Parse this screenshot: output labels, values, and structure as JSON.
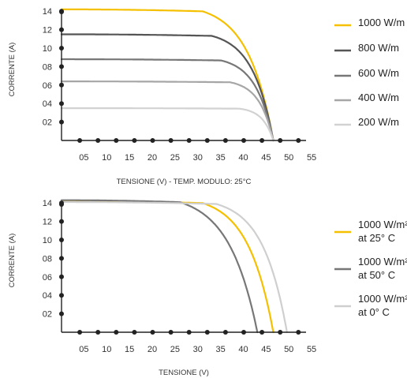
{
  "chart_data": [
    {
      "type": "line",
      "xlabel": "TENSIONE (V) - TEMP. MODULO: 25°C",
      "ylabel": "CORRENTE (A)",
      "x_ticks": [
        "05",
        "10",
        "15",
        "20",
        "25",
        "30",
        "35",
        "40",
        "45",
        "50",
        "55"
      ],
      "y_ticks": [
        "02",
        "04",
        "06",
        "08",
        "10",
        "12",
        "14"
      ],
      "xlim": [
        0,
        57
      ],
      "ylim": [
        0,
        14.5
      ],
      "legend_position": "right",
      "series": [
        {
          "name": "1000 W/m",
          "color": "#f5c000",
          "isc": 14.2,
          "voc": 46.5,
          "knee": 31,
          "k": 0.18
        },
        {
          "name": "800 W/m",
          "color": "#555555",
          "isc": 11.5,
          "voc": 46.5,
          "knee": 33,
          "k": 0.22
        },
        {
          "name": "600 W/m",
          "color": "#777777",
          "isc": 8.8,
          "voc": 46.5,
          "knee": 35,
          "k": 0.26
        },
        {
          "name": "400 W/m",
          "color": "#a6a6a6",
          "isc": 6.4,
          "voc": 46.5,
          "knee": 37,
          "k": 0.32
        },
        {
          "name": "200 W/m",
          "color": "#d2d2d2",
          "isc": 3.5,
          "voc": 46.5,
          "knee": 39,
          "k": 0.42
        }
      ]
    },
    {
      "type": "line",
      "xlabel": "TENSIONE (V)",
      "ylabel": "CORRENTE (A)",
      "x_ticks": [
        "05",
        "10",
        "15",
        "20",
        "25",
        "30",
        "35",
        "40",
        "45",
        "50",
        "55"
      ],
      "y_ticks": [
        "02",
        "04",
        "06",
        "08",
        "10",
        "12",
        "14"
      ],
      "xlim": [
        0,
        57
      ],
      "ylim": [
        0,
        14.5
      ],
      "legend_position": "right",
      "series": [
        {
          "name": "1000 W/m² at 25° C",
          "line1": "1000 W/m²",
          "line2": "at 25° C",
          "color": "#f5c000",
          "isc": 14.2,
          "voc": 46.5,
          "knee": 31,
          "k": 0.18
        },
        {
          "name": "1000 W/m² at 50° C",
          "line1": "1000 W/m²",
          "line2": "at 50° C",
          "color": "#777777",
          "isc": 14.3,
          "voc": 43,
          "knee": 26,
          "k": 0.16
        },
        {
          "name": "1000 W/m² at 0° C",
          "line1": "1000 W/m²",
          "line2": "at 0° C",
          "color": "#cfcfcf",
          "isc": 14.1,
          "voc": 49.5,
          "knee": 34,
          "k": 0.19
        }
      ]
    }
  ]
}
